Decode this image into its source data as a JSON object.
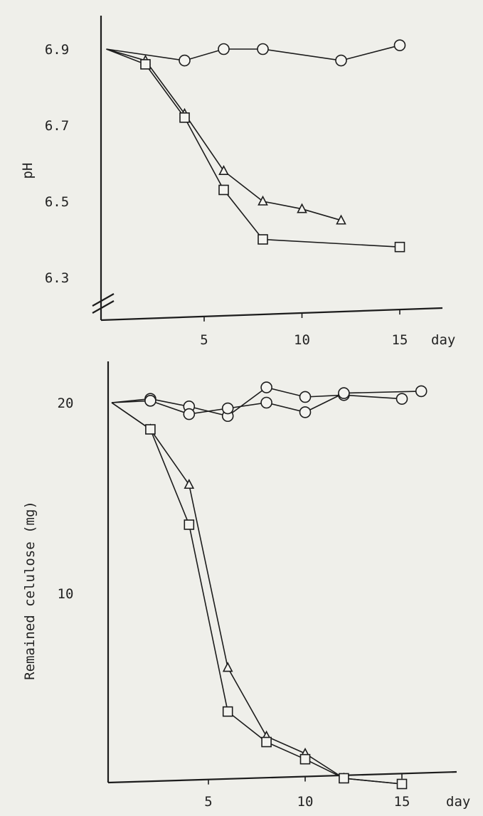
{
  "chart_data": [
    {
      "type": "line",
      "title": "",
      "xlabel": "day",
      "ylabel": "pH",
      "xlim": [
        0,
        17
      ],
      "ylim": [
        6.2,
        6.95
      ],
      "y_axis_break": true,
      "xticks": [
        5,
        10,
        15
      ],
      "xtick_labels": [
        "5",
        "10",
        "15"
      ],
      "yticks": [
        6.3,
        6.5,
        6.7,
        6.9
      ],
      "ytick_labels": [
        "6.3",
        "6.5",
        "6.7",
        "6.9"
      ],
      "grid": false,
      "series": [
        {
          "marker": "circle",
          "x": [
            0,
            4,
            6,
            8,
            12,
            15
          ],
          "y": [
            6.9,
            6.87,
            6.9,
            6.9,
            6.87,
            6.91
          ]
        },
        {
          "marker": "triangle",
          "x": [
            0,
            2,
            4,
            6,
            8,
            10,
            12
          ],
          "y": [
            6.9,
            6.87,
            6.73,
            6.58,
            6.5,
            6.48,
            6.45
          ]
        },
        {
          "marker": "square",
          "x": [
            0,
            2,
            4,
            6,
            8,
            15
          ],
          "y": [
            6.9,
            6.86,
            6.72,
            6.53,
            6.4,
            6.38
          ]
        }
      ]
    },
    {
      "type": "line",
      "title": "",
      "xlabel": "day",
      "ylabel": "Remained celulose (mg)",
      "xlim": [
        0,
        17
      ],
      "ylim": [
        0,
        22
      ],
      "xticks": [
        5,
        10,
        15
      ],
      "xtick_labels": [
        "5",
        "10",
        "15"
      ],
      "yticks": [
        10,
        20
      ],
      "ytick_labels": [
        "10",
        "20"
      ],
      "grid": false,
      "series": [
        {
          "marker": "circle",
          "x": [
            0,
            2,
            4,
            6,
            8,
            10,
            12,
            15
          ],
          "y": [
            20,
            20.2,
            19.8,
            19.3,
            20.8,
            20.3,
            20.4,
            20.2
          ]
        },
        {
          "marker": "circle",
          "x": [
            0,
            2,
            4,
            6,
            8,
            10,
            12,
            16
          ],
          "y": [
            20,
            20.1,
            19.4,
            19.7,
            20.0,
            19.5,
            20.5,
            20.6
          ]
        },
        {
          "marker": "triangle",
          "x": [
            0,
            2,
            4,
            6,
            8,
            10,
            12,
            15
          ],
          "y": [
            20,
            18.6,
            15.7,
            6.1,
            2.5,
            1.6,
            0.3,
            0
          ]
        },
        {
          "marker": "square",
          "x": [
            0,
            2,
            4,
            6,
            8,
            10,
            12,
            15
          ],
          "y": [
            20,
            18.6,
            13.6,
            3.8,
            2.2,
            1.3,
            0.3,
            0
          ]
        }
      ]
    }
  ]
}
